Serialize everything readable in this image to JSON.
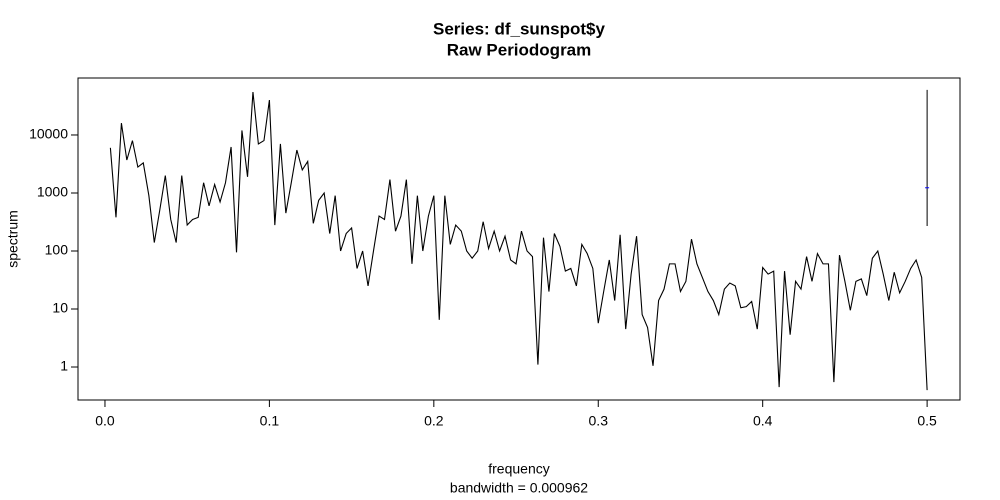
{
  "chart_data": {
    "type": "line",
    "title": "Series: df_sunspot$y",
    "subtitle": "Raw Periodogram",
    "xlabel": "frequency",
    "xsublabel": "bandwidth = 0.000962",
    "ylabel": "spectrum",
    "log_y": true,
    "color": "#000000",
    "x": [
      0.0033,
      0.0067,
      0.01,
      0.0133,
      0.0167,
      0.02,
      0.0233,
      0.0267,
      0.03,
      0.0333,
      0.0367,
      0.04,
      0.0433,
      0.0467,
      0.05,
      0.0533,
      0.0567,
      0.06,
      0.0633,
      0.0667,
      0.07,
      0.0733,
      0.0767,
      0.08,
      0.0833,
      0.0867,
      0.09,
      0.0933,
      0.0967,
      0.1,
      0.1033,
      0.1067,
      0.11,
      0.1133,
      0.1167,
      0.12,
      0.1233,
      0.1267,
      0.13,
      0.1333,
      0.1367,
      0.14,
      0.1433,
      0.1467,
      0.15,
      0.1533,
      0.1567,
      0.16,
      0.1633,
      0.1667,
      0.17,
      0.1733,
      0.1767,
      0.18,
      0.1833,
      0.1867,
      0.19,
      0.1933,
      0.1967,
      0.2,
      0.2033,
      0.2067,
      0.21,
      0.2133,
      0.2167,
      0.22,
      0.2233,
      0.2267,
      0.23,
      0.2333,
      0.2367,
      0.24,
      0.2433,
      0.2467,
      0.25,
      0.2533,
      0.2567,
      0.26,
      0.2633,
      0.2667,
      0.27,
      0.2733,
      0.2767,
      0.28,
      0.2833,
      0.2867,
      0.29,
      0.2933,
      0.2967,
      0.3,
      0.3033,
      0.3067,
      0.31,
      0.3133,
      0.3167,
      0.32,
      0.3233,
      0.3267,
      0.33,
      0.3333,
      0.3367,
      0.34,
      0.3433,
      0.3467,
      0.35,
      0.3533,
      0.3567,
      0.36,
      0.3633,
      0.3667,
      0.37,
      0.3733,
      0.3767,
      0.38,
      0.3833,
      0.3867,
      0.39,
      0.3933,
      0.3967,
      0.4,
      0.4033,
      0.4067,
      0.41,
      0.4133,
      0.4167,
      0.42,
      0.4233,
      0.4267,
      0.43,
      0.4333,
      0.4367,
      0.44,
      0.4433,
      0.4467,
      0.45,
      0.4533,
      0.4567,
      0.46,
      0.4633,
      0.4667,
      0.47,
      0.4733,
      0.4767,
      0.48,
      0.4833,
      0.4867,
      0.49,
      0.4933,
      0.4967,
      0.5
    ],
    "values": [
      6000,
      380,
      16000,
      3700,
      8000,
      2800,
      3300,
      900,
      140,
      500,
      2000,
      350,
      140,
      2000,
      280,
      350,
      380,
      1500,
      600,
      1400,
      700,
      1500,
      6200,
      95,
      12000,
      1900,
      55000,
      7000,
      8000,
      40000,
      280,
      7000,
      450,
      1500,
      5500,
      2500,
      3500,
      300,
      750,
      1000,
      200,
      900,
      100,
      200,
      250,
      50,
      100,
      25,
      100,
      400,
      350,
      1700,
      220,
      400,
      1700,
      60,
      900,
      100,
      400,
      900,
      6.5,
      900,
      130,
      280,
      220,
      100,
      75,
      100,
      320,
      110,
      220,
      100,
      180,
      70,
      60,
      220,
      100,
      80,
      1.1,
      170,
      20,
      200,
      120,
      45,
      50,
      25,
      130,
      90,
      50,
      5.7,
      20,
      70,
      14,
      190,
      4.5,
      40,
      180,
      8,
      4.8,
      1.05,
      14,
      22,
      60,
      60,
      20,
      30,
      160,
      60,
      35,
      20,
      14,
      8,
      22,
      28,
      25,
      10.5,
      11,
      13.5,
      4.5,
      52,
      40,
      45,
      0.45,
      45,
      3.6,
      30,
      22,
      80,
      30,
      90,
      60,
      60,
      0.55,
      85,
      30,
      9.5,
      30,
      33,
      17,
      75,
      100,
      40,
      14,
      43,
      19,
      30,
      50,
      70,
      35,
      0.4
    ],
    "ci_bar": {
      "x": 0.5,
      "lower": 270,
      "center": 1230,
      "upper": 60000,
      "color": "#0000ff"
    },
    "xlim": [
      -0.0164,
      0.52
    ],
    "ylim": [
      0.27,
      96000
    ],
    "xticks": [
      {
        "value": 0,
        "label": "0.0"
      },
      0.1,
      0.2,
      0.3,
      0.4,
      0.5
    ],
    "yticks": [
      1,
      10,
      100,
      1000,
      10000
    ]
  }
}
